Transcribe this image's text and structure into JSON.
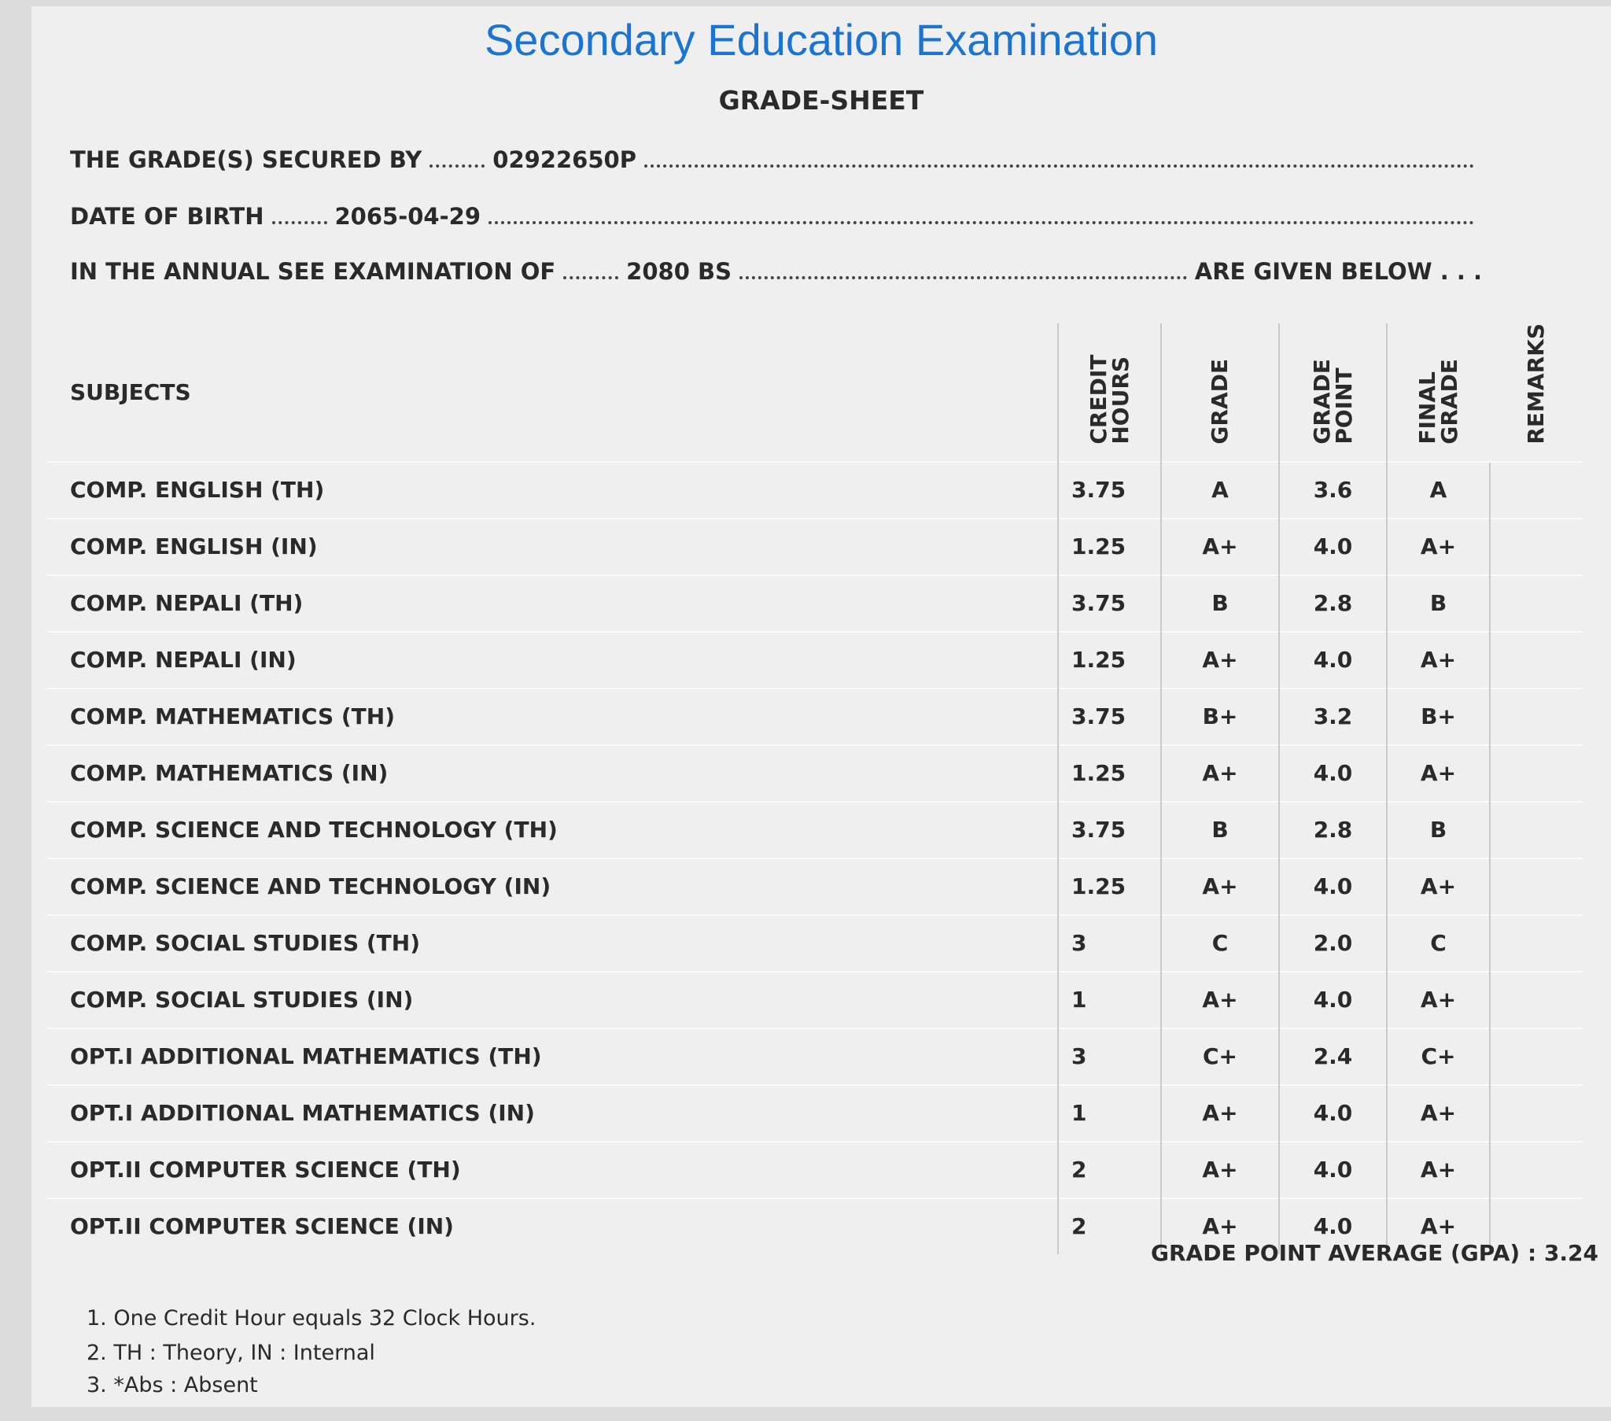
{
  "header": {
    "title": "Secondary Education Examination",
    "subtitle": "GRADE-SHEET"
  },
  "info": [
    {
      "label": "THE GRADE(S) SECURED BY",
      "value": "02922650P"
    },
    {
      "label": "DATE OF BIRTH",
      "value": "2065-04-29"
    },
    {
      "label": "IN THE ANNUAL SEE EXAMINATION OF",
      "value": "2080 BS",
      "suffix": "ARE GIVEN BELOW . . ."
    }
  ],
  "table": {
    "columns": [
      "SUBJECTS",
      "CREDIT HOURS",
      "GRADE",
      "GRADE POINT",
      "FINAL GRADE",
      "REMARKS"
    ],
    "rows": [
      [
        "COMP. ENGLISH (TH)",
        "3.75",
        "A",
        "3.6",
        "A"
      ],
      [
        "COMP. ENGLISH (IN)",
        "1.25",
        "A+",
        "4.0",
        "A+"
      ],
      [
        "COMP. NEPALI (TH)",
        "3.75",
        "B",
        "2.8",
        "B"
      ],
      [
        "COMP. NEPALI (IN)",
        "1.25",
        "A+",
        "4.0",
        "A+"
      ],
      [
        "COMP. MATHEMATICS (TH)",
        "3.75",
        "B+",
        "3.2",
        "B+"
      ],
      [
        "COMP. MATHEMATICS (IN)",
        "1.25",
        "A+",
        "4.0",
        "A+"
      ],
      [
        "COMP. SCIENCE AND TECHNOLOGY (TH)",
        "3.75",
        "B",
        "2.8",
        "B"
      ],
      [
        "COMP. SCIENCE AND TECHNOLOGY (IN)",
        "1.25",
        "A+",
        "4.0",
        "A+"
      ],
      [
        "COMP. SOCIAL STUDIES (TH)",
        "3",
        "C",
        "2.0",
        "C"
      ],
      [
        "COMP. SOCIAL STUDIES (IN)",
        "1",
        "A+",
        "4.0",
        "A+"
      ],
      [
        "OPT.I ADDITIONAL MATHEMATICS (TH)",
        "3",
        "C+",
        "2.4",
        "C+"
      ],
      [
        "OPT.I ADDITIONAL MATHEMATICS (IN)",
        "1",
        "A+",
        "4.0",
        "A+"
      ],
      [
        "OPT.II COMPUTER SCIENCE (TH)",
        "2",
        "A+",
        "4.0",
        "A+"
      ],
      [
        "OPT.II COMPUTER SCIENCE (IN)",
        "2",
        "A+",
        "4.0",
        "A+"
      ]
    ]
  },
  "gpa": {
    "label": "GRADE POINT AVERAGE (GPA) :",
    "value": "3.24"
  },
  "notes": [
    "1. One Credit Hour equals 32 Clock Hours.",
    "2. TH : Theory, IN : Internal",
    "3. *Abs : Absent"
  ]
}
